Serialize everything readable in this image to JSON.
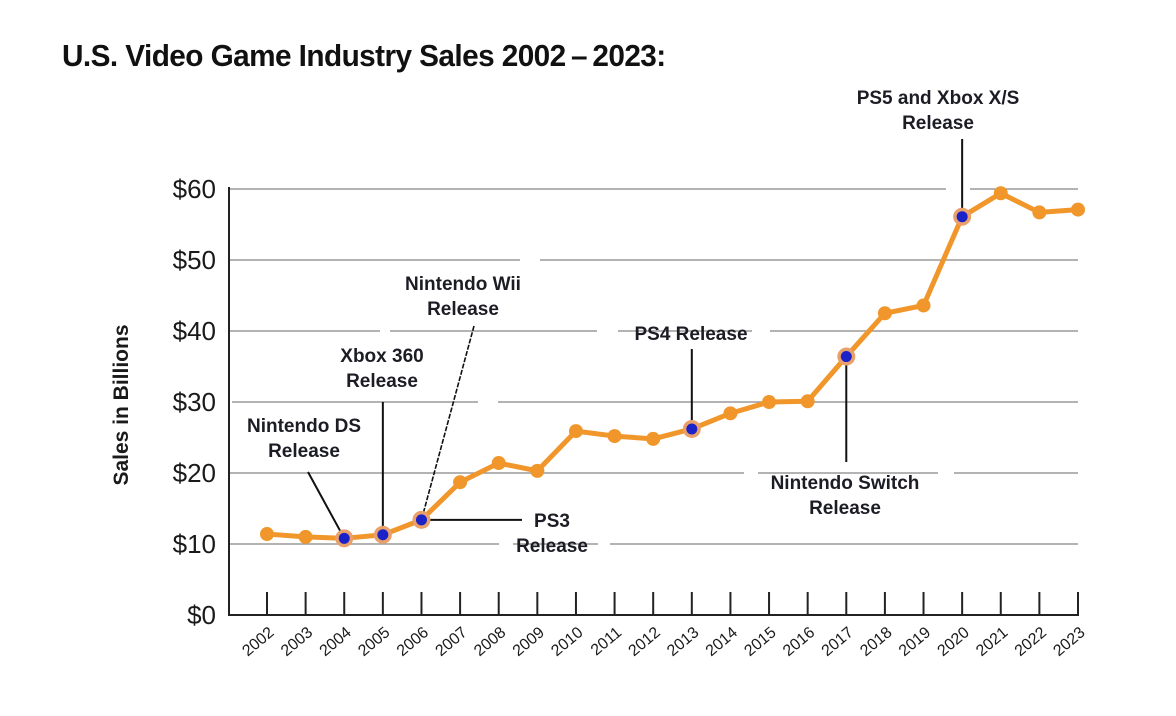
{
  "chart_data": {
    "type": "line",
    "title": "U.S. Video Game Industry Sales 2002 – 2023:",
    "xlabel": "",
    "ylabel": "Sales in Billions",
    "ylim": [
      0,
      60
    ],
    "yticks": [
      0,
      10,
      20,
      30,
      40,
      50,
      60
    ],
    "ytick_labels": [
      "$0",
      "$10",
      "$20",
      "$30",
      "$40",
      "$50",
      "$60"
    ],
    "grid": true,
    "categories": [
      "2002",
      "2003",
      "2004",
      "2005",
      "2006",
      "2007",
      "2008",
      "2009",
      "2010",
      "2011",
      "2012",
      "2013",
      "2014",
      "2015",
      "2016",
      "2017",
      "2018",
      "2019",
      "2020",
      "2021",
      "2022",
      "2023"
    ],
    "series": [
      {
        "name": "U.S. Video Game Industry Sales",
        "color": "#f0962a",
        "values": [
          11.4,
          11.0,
          10.8,
          11.3,
          13.4,
          18.7,
          21.4,
          20.3,
          25.9,
          25.2,
          24.8,
          26.2,
          28.4,
          30.0,
          30.1,
          36.4,
          42.5,
          43.6,
          56.1,
          59.4,
          56.7,
          57.1
        ]
      }
    ],
    "highlight_color": "#1a22c8",
    "annotations": [
      {
        "year": "2004",
        "lines": [
          "Nintendo DS",
          "Release"
        ]
      },
      {
        "year": "2005",
        "lines": [
          "Xbox 360",
          "Release"
        ]
      },
      {
        "year": "2006",
        "lines": [
          "Nintendo Wii",
          "Release"
        ]
      },
      {
        "year": "2006",
        "lines": [
          "PS3",
          "Release"
        ]
      },
      {
        "year": "2013",
        "lines": [
          "PS4 Release"
        ]
      },
      {
        "year": "2017",
        "lines": [
          "Nintendo Switch",
          "Release"
        ]
      },
      {
        "year": "2020",
        "lines": [
          "PS5 and Xbox X/S",
          "Release"
        ]
      }
    ]
  }
}
